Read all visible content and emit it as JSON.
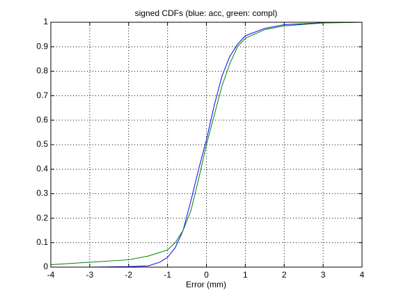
{
  "chart_data": {
    "type": "line",
    "title": "signed CDFs (blue: acc, green: compl)",
    "x_label": "Error (mm)",
    "x": [
      -4,
      -3,
      -2,
      -1.5,
      -1.2,
      -1,
      -0.8,
      -0.6,
      -0.4,
      -0.2,
      0,
      0.2,
      0.4,
      0.6,
      0.8,
      1,
      1.5,
      2,
      3,
      4
    ],
    "series": [
      {
        "color": "#0000ff",
        "values": [
          0,
          0,
          0.002,
          0.005,
          0.02,
          0.04,
          0.08,
          0.15,
          0.27,
          0.4,
          0.52,
          0.66,
          0.78,
          0.86,
          0.91,
          0.945,
          0.975,
          0.99,
          0.998,
          1
        ]
      },
      {
        "color": "#008000",
        "values": [
          0.01,
          0.02,
          0.03,
          0.045,
          0.06,
          0.07,
          0.1,
          0.15,
          0.23,
          0.36,
          0.5,
          0.62,
          0.74,
          0.83,
          0.9,
          0.935,
          0.97,
          0.985,
          0.997,
          1
        ]
      }
    ],
    "xlim": [
      -4,
      4
    ],
    "xticks": [
      -4,
      -3,
      -2,
      -1,
      0,
      1,
      2,
      3,
      4
    ],
    "ylim": [
      0,
      1
    ],
    "yticks": [
      0,
      0.1,
      0.2,
      0.3,
      0.4,
      0.5,
      0.6,
      0.7,
      0.8,
      0.9,
      1
    ],
    "grid": true
  }
}
